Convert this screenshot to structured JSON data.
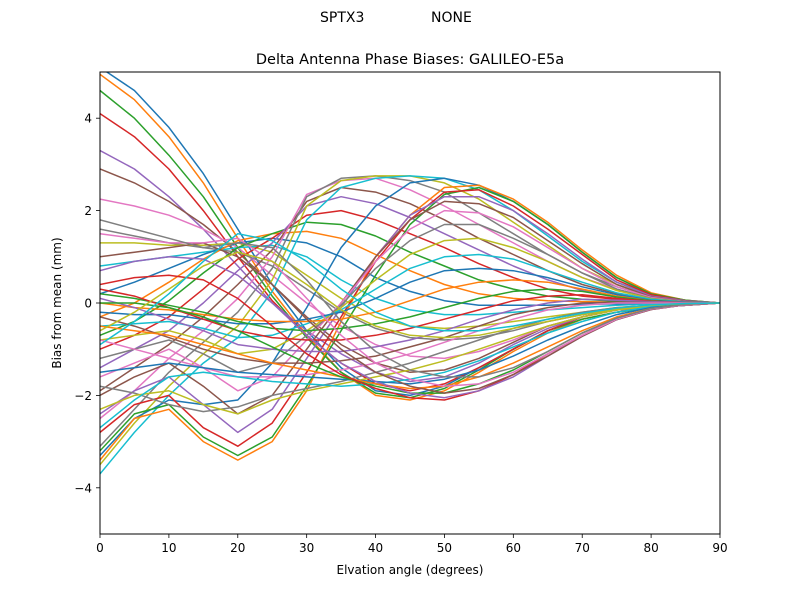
{
  "figure": {
    "suptitle_left": "SPTX3",
    "suptitle_right": "NONE"
  },
  "chart_data": {
    "type": "line",
    "title": "Delta Antenna Phase Biases: GALILEO-E5a",
    "xlabel": "Elvation angle (degrees)",
    "ylabel": "Bias from mean (mm)",
    "xlim": [
      0,
      90
    ],
    "ylim": [
      -5,
      5
    ],
    "xticks": [
      0,
      10,
      20,
      30,
      40,
      50,
      60,
      70,
      80,
      90
    ],
    "yticks": [
      -4,
      -2,
      0,
      2,
      4
    ],
    "ytick_labels": [
      "−4",
      "−2",
      "0",
      "2",
      "4"
    ],
    "grid": false,
    "legend": "none",
    "colors": [
      "#1f77b4",
      "#ff7f0e",
      "#2ca02c",
      "#d62728",
      "#9467bd",
      "#8c564b",
      "#e377c2",
      "#7f7f7f",
      "#bcbd22",
      "#17becf"
    ],
    "x": [
      0,
      5,
      10,
      15,
      20,
      25,
      30,
      35,
      40,
      45,
      50,
      55,
      60,
      65,
      70,
      75,
      80,
      85,
      90
    ],
    "series": [
      {
        "values": [
          5.1,
          4.6,
          3.8,
          2.8,
          1.6,
          0.4,
          -0.6,
          -1.4,
          -1.9,
          -2.0,
          -1.8,
          -1.4,
          -1.0,
          -0.6,
          -0.35,
          -0.2,
          -0.1,
          -0.05,
          0
        ]
      },
      {
        "values": [
          4.95,
          4.4,
          3.6,
          2.6,
          1.4,
          0.25,
          -0.7,
          -1.5,
          -2.0,
          -2.1,
          -1.9,
          -1.5,
          -1.05,
          -0.65,
          -0.35,
          -0.2,
          -0.1,
          -0.05,
          0
        ]
      },
      {
        "values": [
          4.6,
          4.0,
          3.2,
          2.3,
          1.2,
          0.15,
          -0.75,
          -1.5,
          -1.95,
          -2.05,
          -1.85,
          -1.45,
          -1.0,
          -0.6,
          -0.35,
          -0.2,
          -0.1,
          -0.05,
          0
        ]
      },
      {
        "values": [
          4.1,
          3.6,
          2.9,
          2.0,
          1.0,
          0.05,
          -0.7,
          -1.3,
          -1.75,
          -1.9,
          -1.75,
          -1.4,
          -1.0,
          -0.6,
          -0.3,
          -0.15,
          -0.1,
          -0.05,
          0
        ]
      },
      {
        "values": [
          3.3,
          2.9,
          2.3,
          1.6,
          0.8,
          0.0,
          -0.6,
          -1.1,
          -1.5,
          -1.7,
          -1.6,
          -1.3,
          -0.9,
          -0.55,
          -0.3,
          -0.15,
          -0.1,
          -0.05,
          0
        ]
      },
      {
        "values": [
          2.9,
          2.6,
          2.2,
          1.7,
          1.1,
          0.4,
          -0.3,
          -0.9,
          -1.3,
          -1.5,
          -1.45,
          -1.2,
          -0.85,
          -0.5,
          -0.3,
          -0.15,
          -0.1,
          -0.05,
          0
        ]
      },
      {
        "values": [
          2.25,
          2.1,
          1.9,
          1.6,
          1.2,
          0.6,
          0.0,
          -0.5,
          -0.9,
          -1.15,
          -1.2,
          -1.05,
          -0.8,
          -0.5,
          -0.3,
          -0.15,
          -0.1,
          -0.05,
          0
        ]
      },
      {
        "values": [
          1.6,
          1.45,
          1.3,
          1.2,
          1.1,
          0.8,
          0.3,
          -0.2,
          -0.55,
          -0.75,
          -0.8,
          -0.75,
          -0.6,
          -0.4,
          -0.25,
          -0.15,
          -0.1,
          -0.05,
          0
        ]
      },
      {
        "values": [
          1.3,
          1.3,
          1.25,
          1.25,
          1.3,
          1.1,
          0.6,
          0.1,
          -0.3,
          -0.5,
          -0.55,
          -0.5,
          -0.4,
          -0.3,
          -0.2,
          -0.1,
          -0.05,
          -0.02,
          0
        ]
      },
      {
        "values": [
          0.8,
          0.9,
          1.0,
          1.1,
          1.2,
          1.25,
          1.0,
          0.5,
          0.1,
          -0.15,
          -0.25,
          -0.25,
          -0.2,
          -0.15,
          -0.1,
          -0.05,
          -0.02,
          0,
          0
        ]
      },
      {
        "values": [
          0.2,
          0.45,
          0.75,
          1.05,
          1.3,
          1.4,
          1.3,
          1.0,
          0.55,
          0.25,
          0.05,
          -0.05,
          -0.05,
          -0.05,
          -0.03,
          -0.02,
          0,
          0,
          0
        ]
      },
      {
        "values": [
          -0.3,
          0.0,
          0.45,
          0.95,
          1.35,
          1.5,
          1.55,
          1.4,
          1.05,
          0.7,
          0.4,
          0.2,
          0.1,
          0.05,
          0.03,
          0.02,
          0.01,
          0,
          0
        ]
      },
      {
        "values": [
          -0.7,
          -0.4,
          0.05,
          0.65,
          1.2,
          1.5,
          1.75,
          1.7,
          1.45,
          1.1,
          0.8,
          0.5,
          0.3,
          0.15,
          0.08,
          0.04,
          0.02,
          0,
          0
        ]
      },
      {
        "values": [
          -1.0,
          -0.7,
          -0.3,
          0.3,
          0.95,
          1.4,
          1.9,
          2.0,
          1.8,
          1.5,
          1.2,
          0.85,
          0.55,
          0.3,
          0.15,
          0.08,
          0.03,
          0.01,
          0
        ]
      },
      {
        "values": [
          -1.4,
          -1.0,
          -0.6,
          0.0,
          0.7,
          1.3,
          2.1,
          2.3,
          2.15,
          1.85,
          1.5,
          1.15,
          0.8,
          0.5,
          0.27,
          0.13,
          0.05,
          0.02,
          0
        ]
      },
      {
        "values": [
          -1.9,
          -1.4,
          -0.9,
          -0.3,
          0.4,
          1.15,
          2.2,
          2.5,
          2.4,
          2.15,
          1.8,
          1.4,
          1.05,
          0.7,
          0.4,
          0.2,
          0.08,
          0.03,
          0
        ]
      },
      {
        "values": [
          -2.5,
          -1.9,
          -1.2,
          -0.6,
          0.1,
          1.0,
          2.35,
          2.65,
          2.7,
          2.45,
          2.1,
          1.7,
          1.3,
          0.9,
          0.55,
          0.3,
          0.1,
          0.03,
          0
        ]
      },
      {
        "values": [
          -3.1,
          -2.3,
          -1.5,
          -0.85,
          -0.2,
          0.75,
          2.3,
          2.7,
          2.75,
          2.65,
          2.4,
          1.95,
          1.5,
          1.05,
          0.65,
          0.35,
          0.13,
          0.04,
          0
        ]
      },
      {
        "values": [
          -3.5,
          -2.6,
          -1.8,
          -1.1,
          -0.5,
          0.5,
          2.1,
          2.65,
          2.75,
          2.75,
          2.6,
          2.25,
          1.75,
          1.25,
          0.75,
          0.4,
          0.15,
          0.05,
          0
        ]
      },
      {
        "values": [
          -3.7,
          -2.8,
          -2.0,
          -1.3,
          -0.75,
          0.25,
          1.8,
          2.5,
          2.7,
          2.75,
          2.7,
          2.45,
          2.0,
          1.45,
          0.9,
          0.45,
          0.18,
          0.05,
          0
        ]
      },
      {
        "values": [
          -3.3,
          -2.5,
          -2.1,
          -2.2,
          -2.1,
          -1.3,
          -0.1,
          1.2,
          2.1,
          2.6,
          2.7,
          2.55,
          2.2,
          1.7,
          1.1,
          0.55,
          0.2,
          0.06,
          0
        ]
      },
      {
        "values": [
          -3.4,
          -2.5,
          -2.3,
          -3.0,
          -3.4,
          -3.0,
          -1.9,
          -0.4,
          1.0,
          1.9,
          2.5,
          2.55,
          2.25,
          1.75,
          1.15,
          0.6,
          0.22,
          0.06,
          0
        ]
      },
      {
        "values": [
          -3.2,
          -2.4,
          -2.2,
          -2.9,
          -3.3,
          -2.9,
          -1.8,
          -0.6,
          0.6,
          1.7,
          2.35,
          2.5,
          2.2,
          1.7,
          1.1,
          0.55,
          0.2,
          0.06,
          0
        ]
      },
      {
        "values": [
          -2.8,
          -2.2,
          -2.0,
          -2.7,
          -3.1,
          -2.6,
          -1.5,
          -0.3,
          0.9,
          1.8,
          2.4,
          2.45,
          2.1,
          1.6,
          1.05,
          0.5,
          0.18,
          0.05,
          0
        ]
      },
      {
        "values": [
          -2.4,
          -1.9,
          -1.6,
          -2.2,
          -2.8,
          -2.3,
          -1.2,
          -0.1,
          1.0,
          1.9,
          2.3,
          2.3,
          2.0,
          1.5,
          0.95,
          0.45,
          0.15,
          0.05,
          0
        ]
      },
      {
        "values": [
          -2.0,
          -1.6,
          -1.3,
          -1.8,
          -2.4,
          -2.0,
          -1.0,
          0.0,
          1.0,
          1.8,
          2.2,
          2.15,
          1.85,
          1.35,
          0.85,
          0.4,
          0.13,
          0.04,
          0
        ]
      },
      {
        "values": [
          -1.6,
          -1.3,
          -1.0,
          -1.4,
          -1.9,
          -1.6,
          -0.8,
          0.0,
          0.9,
          1.6,
          2.0,
          1.95,
          1.65,
          1.2,
          0.75,
          0.35,
          0.12,
          0.03,
          0
        ]
      },
      {
        "values": [
          -1.2,
          -1.0,
          -0.8,
          -1.1,
          -1.5,
          -1.3,
          -0.7,
          -0.05,
          0.75,
          1.35,
          1.7,
          1.7,
          1.4,
          1.05,
          0.65,
          0.3,
          0.1,
          0.03,
          0
        ]
      },
      {
        "values": [
          -0.8,
          -0.7,
          -0.6,
          -0.8,
          -1.1,
          -1.0,
          -0.6,
          -0.1,
          0.5,
          1.05,
          1.35,
          1.4,
          1.2,
          0.9,
          0.55,
          0.27,
          0.09,
          0.02,
          0
        ]
      },
      {
        "values": [
          -0.5,
          -0.45,
          -0.4,
          -0.55,
          -0.75,
          -0.7,
          -0.45,
          -0.15,
          0.3,
          0.75,
          1.0,
          1.05,
          0.95,
          0.7,
          0.45,
          0.22,
          0.08,
          0.02,
          0
        ]
      },
      {
        "values": [
          -0.2,
          -0.25,
          -0.25,
          -0.35,
          -0.45,
          -0.45,
          -0.35,
          -0.2,
          0.1,
          0.45,
          0.7,
          0.75,
          0.7,
          0.55,
          0.35,
          0.18,
          0.06,
          0.02,
          0
        ]
      },
      {
        "values": [
          0.0,
          -0.1,
          -0.15,
          -0.25,
          -0.35,
          -0.4,
          -0.4,
          -0.35,
          -0.2,
          0.05,
          0.3,
          0.45,
          0.5,
          0.45,
          0.3,
          0.15,
          0.05,
          0.01,
          0
        ]
      },
      {
        "values": [
          0.2,
          0.1,
          -0.05,
          -0.2,
          -0.4,
          -0.55,
          -0.6,
          -0.55,
          -0.45,
          -0.3,
          -0.1,
          0.1,
          0.25,
          0.3,
          0.25,
          0.13,
          0.05,
          0.01,
          0
        ]
      },
      {
        "values": [
          0.3,
          0.15,
          -0.1,
          -0.35,
          -0.6,
          -0.75,
          -0.8,
          -0.8,
          -0.7,
          -0.55,
          -0.35,
          -0.15,
          0.05,
          0.15,
          0.18,
          0.1,
          0.04,
          0.01,
          0
        ]
      },
      {
        "values": [
          0.1,
          -0.1,
          -0.35,
          -0.6,
          -0.9,
          -1.0,
          -1.05,
          -1.05,
          -0.95,
          -0.8,
          -0.6,
          -0.35,
          -0.15,
          0.0,
          0.08,
          0.06,
          0.03,
          0.01,
          0
        ]
      },
      {
        "values": [
          -0.3,
          -0.5,
          -0.75,
          -1.0,
          -1.2,
          -1.3,
          -1.3,
          -1.25,
          -1.15,
          -0.95,
          -0.75,
          -0.5,
          -0.25,
          -0.1,
          0.0,
          0.02,
          0.01,
          0,
          0
        ]
      },
      {
        "values": [
          -0.8,
          -1.0,
          -1.2,
          -1.4,
          -1.6,
          -1.6,
          -1.55,
          -1.45,
          -1.3,
          -1.1,
          -0.85,
          -0.6,
          -0.35,
          -0.15,
          -0.05,
          0.0,
          0.0,
          0,
          0
        ]
      },
      {
        "values": [
          -1.8,
          -1.95,
          -2.2,
          -2.35,
          -2.25,
          -2.0,
          -1.85,
          -1.7,
          -1.5,
          -1.3,
          -1.05,
          -0.8,
          -0.55,
          -0.35,
          -0.2,
          -0.1,
          -0.05,
          -0.02,
          0
        ]
      },
      {
        "values": [
          -2.3,
          -2.0,
          -1.9,
          -2.2,
          -2.4,
          -2.1,
          -1.9,
          -1.75,
          -1.6,
          -1.45,
          -1.25,
          -1.0,
          -0.75,
          -0.5,
          -0.3,
          -0.15,
          -0.07,
          -0.02,
          0
        ]
      },
      {
        "values": [
          -2.7,
          -2.1,
          -1.6,
          -1.5,
          -1.6,
          -1.7,
          -1.75,
          -1.8,
          -1.75,
          -1.65,
          -1.5,
          -1.25,
          -0.95,
          -0.65,
          -0.4,
          -0.2,
          -0.08,
          -0.02,
          0
        ]
      },
      {
        "values": [
          -1.5,
          -1.4,
          -1.3,
          -1.4,
          -1.5,
          -1.55,
          -1.6,
          -1.65,
          -1.7,
          -1.75,
          -1.65,
          -1.45,
          -1.15,
          -0.8,
          -0.5,
          -0.25,
          -0.1,
          -0.03,
          0
        ]
      },
      {
        "values": [
          -0.5,
          -0.6,
          -0.7,
          -0.9,
          -1.1,
          -1.3,
          -1.45,
          -1.6,
          -1.75,
          -1.85,
          -1.8,
          -1.6,
          -1.3,
          -0.95,
          -0.6,
          -0.3,
          -0.12,
          -0.03,
          0
        ]
      },
      {
        "values": [
          0.0,
          0.0,
          -0.1,
          -0.3,
          -0.6,
          -0.95,
          -1.3,
          -1.6,
          -1.8,
          -1.95,
          -1.95,
          -1.75,
          -1.45,
          -1.05,
          -0.65,
          -0.33,
          -0.13,
          -0.03,
          0
        ]
      },
      {
        "values": [
          0.4,
          0.55,
          0.6,
          0.5,
          0.1,
          -0.5,
          -1.1,
          -1.55,
          -1.85,
          -2.05,
          -2.1,
          -1.9,
          -1.55,
          -1.1,
          -0.7,
          -0.35,
          -0.14,
          -0.04,
          0
        ]
      },
      {
        "values": [
          0.7,
          0.9,
          1.0,
          0.95,
          0.6,
          0.0,
          -0.7,
          -1.3,
          -1.7,
          -1.95,
          -2.05,
          -1.9,
          -1.6,
          -1.15,
          -0.72,
          -0.36,
          -0.14,
          -0.04,
          0
        ]
      },
      {
        "values": [
          1.0,
          1.1,
          1.2,
          1.3,
          1.0,
          0.4,
          -0.35,
          -1.0,
          -1.5,
          -1.8,
          -1.95,
          -1.85,
          -1.55,
          -1.15,
          -0.72,
          -0.36,
          -0.14,
          -0.04,
          0
        ]
      },
      {
        "values": [
          1.5,
          1.4,
          1.3,
          1.3,
          1.4,
          0.9,
          0.1,
          -0.7,
          -1.3,
          -1.65,
          -1.8,
          -1.75,
          -1.5,
          -1.1,
          -0.7,
          -0.35,
          -0.13,
          -0.04,
          0
        ]
      },
      {
        "values": [
          1.8,
          1.6,
          1.4,
          1.2,
          1.3,
          1.2,
          0.5,
          -0.4,
          -1.05,
          -1.45,
          -1.6,
          -1.6,
          -1.4,
          -1.05,
          -0.65,
          -0.33,
          -0.12,
          -0.03,
          0
        ]
      },
      {
        "values": [
          -0.6,
          -0.2,
          0.3,
          0.8,
          1.1,
          0.9,
          0.4,
          -0.15,
          -0.5,
          -0.7,
          -0.75,
          -0.7,
          -0.55,
          -0.4,
          -0.25,
          -0.13,
          -0.05,
          -0.01,
          0
        ]
      },
      {
        "values": [
          -0.9,
          -0.4,
          0.2,
          0.9,
          1.5,
          1.35,
          0.9,
          0.3,
          -0.2,
          -0.5,
          -0.6,
          -0.6,
          -0.5,
          -0.35,
          -0.22,
          -0.11,
          -0.04,
          -0.01,
          0
        ]
      }
    ]
  }
}
